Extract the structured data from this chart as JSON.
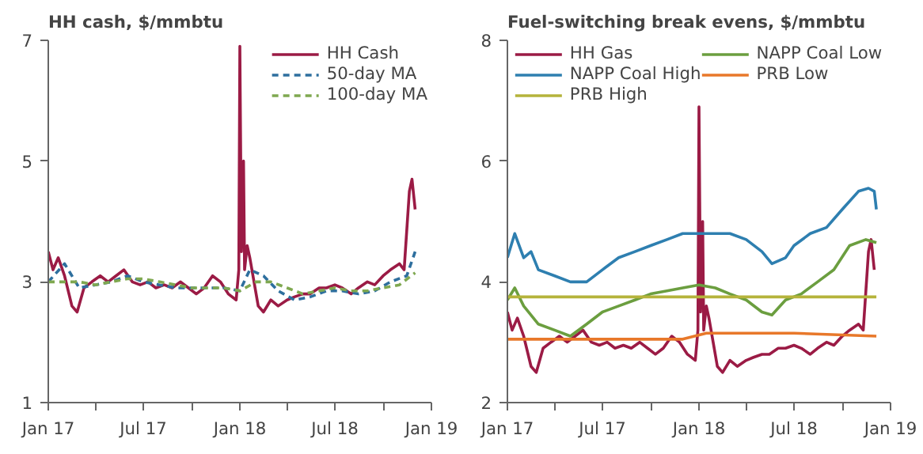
{
  "chart_data": [
    {
      "type": "line",
      "title": "HH cash, $/mmbtu",
      "xlim": [
        "2017-01",
        "2019-01"
      ],
      "ylim": [
        1,
        7
      ],
      "yticks": [
        1,
        3,
        5,
        7
      ],
      "xticks": [
        {
          "value": "2017-01",
          "label": "Jan 17"
        },
        {
          "value": "2017-04",
          "label": null
        },
        {
          "value": "2017-07",
          "label": "Jul 17"
        },
        {
          "value": "2017-10",
          "label": null
        },
        {
          "value": "2018-01",
          "label": "Jan 18"
        },
        {
          "value": "2018-04",
          "label": null
        },
        {
          "value": "2018-07",
          "label": "Jul 18"
        },
        {
          "value": "2018-10",
          "label": null
        },
        {
          "value": "2019-01",
          "label": "Jan 19"
        }
      ],
      "grid": false,
      "legend": "top right",
      "series": [
        {
          "name": "HH Cash",
          "color": "#9b1b45",
          "line_style": "solid",
          "x": [
            "2017-01-01",
            "2017-01-10",
            "2017-01-20",
            "2017-02-01",
            "2017-02-15",
            "2017-02-25",
            "2017-03-10",
            "2017-03-25",
            "2017-04-10",
            "2017-04-25",
            "2017-05-10",
            "2017-05-25",
            "2017-06-10",
            "2017-06-25",
            "2017-07-10",
            "2017-07-25",
            "2017-08-10",
            "2017-08-25",
            "2017-09-10",
            "2017-09-25",
            "2017-10-10",
            "2017-10-25",
            "2017-11-10",
            "2017-11-25",
            "2017-12-10",
            "2017-12-25",
            "2017-12-30",
            "2018-01-01",
            "2018-01-04",
            "2018-01-08",
            "2018-01-10",
            "2018-01-15",
            "2018-01-20",
            "2018-01-28",
            "2018-02-05",
            "2018-02-15",
            "2018-03-01",
            "2018-03-15",
            "2018-04-01",
            "2018-04-15",
            "2018-05-01",
            "2018-05-15",
            "2018-06-01",
            "2018-06-15",
            "2018-07-01",
            "2018-07-15",
            "2018-08-01",
            "2018-08-15",
            "2018-09-01",
            "2018-09-15",
            "2018-10-01",
            "2018-10-15",
            "2018-11-01",
            "2018-11-10",
            "2018-11-20",
            "2018-11-25",
            "2018-12-01"
          ],
          "values": [
            3.5,
            3.2,
            3.4,
            3.1,
            2.6,
            2.5,
            2.9,
            3.0,
            3.1,
            3.0,
            3.1,
            3.2,
            3.0,
            2.95,
            3.0,
            2.9,
            2.95,
            2.9,
            3.0,
            2.9,
            2.8,
            2.9,
            3.1,
            3.0,
            2.8,
            2.7,
            3.2,
            6.9,
            3.5,
            5.0,
            3.2,
            3.6,
            3.4,
            3.0,
            2.6,
            2.5,
            2.7,
            2.6,
            2.7,
            2.75,
            2.8,
            2.8,
            2.9,
            2.9,
            2.95,
            2.9,
            2.8,
            2.9,
            3.0,
            2.95,
            3.1,
            3.2,
            3.3,
            3.2,
            4.5,
            4.7,
            4.2
          ]
        },
        {
          "name": "50-day MA",
          "color": "#2e6f9e",
          "line_style": "dashed",
          "x": [
            "2017-01-01",
            "2017-02-01",
            "2017-03-01",
            "2017-04-01",
            "2017-05-01",
            "2017-06-01",
            "2017-07-01",
            "2017-08-01",
            "2017-09-01",
            "2017-10-01",
            "2017-11-01",
            "2017-12-01",
            "2018-01-01",
            "2018-01-20",
            "2018-02-15",
            "2018-03-15",
            "2018-04-15",
            "2018-05-15",
            "2018-06-15",
            "2018-07-15",
            "2018-08-15",
            "2018-09-15",
            "2018-10-15",
            "2018-11-15",
            "2018-12-01"
          ],
          "values": [
            3.0,
            3.3,
            2.9,
            2.95,
            3.0,
            3.1,
            3.0,
            2.95,
            2.9,
            2.9,
            2.9,
            2.9,
            2.85,
            3.2,
            3.1,
            2.85,
            2.7,
            2.75,
            2.85,
            2.85,
            2.8,
            2.85,
            3.0,
            3.1,
            3.5
          ]
        },
        {
          "name": "100-day MA",
          "color": "#7fa850",
          "line_style": "dashed",
          "x": [
            "2017-01-01",
            "2017-02-01",
            "2017-03-01",
            "2017-04-01",
            "2017-05-01",
            "2017-06-01",
            "2017-07-01",
            "2017-08-01",
            "2017-09-01",
            "2017-10-01",
            "2017-11-01",
            "2017-12-01",
            "2018-01-01",
            "2018-02-01",
            "2018-03-01",
            "2018-04-01",
            "2018-05-01",
            "2018-06-01",
            "2018-07-01",
            "2018-08-01",
            "2018-09-01",
            "2018-10-01",
            "2018-11-01",
            "2018-12-01"
          ],
          "values": [
            3.0,
            3.0,
            3.0,
            2.95,
            3.0,
            3.05,
            3.05,
            3.0,
            2.95,
            2.9,
            2.9,
            2.9,
            2.85,
            3.0,
            3.0,
            2.9,
            2.8,
            2.85,
            2.9,
            2.85,
            2.85,
            2.9,
            2.95,
            3.15
          ]
        }
      ]
    },
    {
      "type": "line",
      "title": "Fuel-switching break evens, $/mmbtu",
      "xlim": [
        "2017-01",
        "2019-01"
      ],
      "ylim": [
        2,
        8
      ],
      "yticks": [
        2,
        4,
        6,
        8
      ],
      "xticks": [
        {
          "value": "2017-01",
          "label": "Jan 17"
        },
        {
          "value": "2017-04",
          "label": null
        },
        {
          "value": "2017-07",
          "label": "Jul 17"
        },
        {
          "value": "2017-10",
          "label": null
        },
        {
          "value": "2018-01",
          "label": "Jan 18"
        },
        {
          "value": "2018-04",
          "label": null
        },
        {
          "value": "2018-07",
          "label": "Jul 18"
        },
        {
          "value": "2018-10",
          "label": null
        },
        {
          "value": "2019-01",
          "label": "Jan 19"
        }
      ],
      "grid": false,
      "legend": "top",
      "series": [
        {
          "name": "HH Gas",
          "color": "#9b1b45",
          "line_style": "solid",
          "x": [
            "2017-01-01",
            "2017-01-10",
            "2017-01-20",
            "2017-02-01",
            "2017-02-15",
            "2017-02-25",
            "2017-03-10",
            "2017-03-25",
            "2017-04-10",
            "2017-04-25",
            "2017-05-10",
            "2017-05-25",
            "2017-06-10",
            "2017-06-25",
            "2017-07-10",
            "2017-07-25",
            "2017-08-10",
            "2017-08-25",
            "2017-09-10",
            "2017-09-25",
            "2017-10-10",
            "2017-10-25",
            "2017-11-10",
            "2017-11-25",
            "2017-12-10",
            "2017-12-25",
            "2017-12-30",
            "2018-01-01",
            "2018-01-04",
            "2018-01-08",
            "2018-01-10",
            "2018-01-15",
            "2018-01-20",
            "2018-01-28",
            "2018-02-05",
            "2018-02-15",
            "2018-03-01",
            "2018-03-15",
            "2018-04-01",
            "2018-04-15",
            "2018-05-01",
            "2018-05-15",
            "2018-06-01",
            "2018-06-15",
            "2018-07-01",
            "2018-07-15",
            "2018-08-01",
            "2018-08-15",
            "2018-09-01",
            "2018-09-15",
            "2018-10-01",
            "2018-10-15",
            "2018-11-01",
            "2018-11-10",
            "2018-11-20",
            "2018-11-25",
            "2018-12-01"
          ],
          "values": [
            3.5,
            3.2,
            3.4,
            3.1,
            2.6,
            2.5,
            2.9,
            3.0,
            3.1,
            3.0,
            3.1,
            3.2,
            3.0,
            2.95,
            3.0,
            2.9,
            2.95,
            2.9,
            3.0,
            2.9,
            2.8,
            2.9,
            3.1,
            3.0,
            2.8,
            2.7,
            3.2,
            6.9,
            3.5,
            5.0,
            3.2,
            3.6,
            3.4,
            3.0,
            2.6,
            2.5,
            2.7,
            2.6,
            2.7,
            2.75,
            2.8,
            2.8,
            2.9,
            2.9,
            2.95,
            2.9,
            2.8,
            2.9,
            3.0,
            2.95,
            3.1,
            3.2,
            3.3,
            3.2,
            4.5,
            4.7,
            4.2
          ]
        },
        {
          "name": "NAPP Coal Low",
          "color": "#6b9e3f",
          "line_style": "solid",
          "x": [
            "2017-01-01",
            "2017-01-15",
            "2017-02-01",
            "2017-03-01",
            "2017-04-01",
            "2017-05-01",
            "2017-06-01",
            "2017-07-01",
            "2017-08-01",
            "2017-09-01",
            "2017-10-01",
            "2017-11-01",
            "2017-12-01",
            "2018-01-01",
            "2018-02-01",
            "2018-03-01",
            "2018-04-01",
            "2018-05-01",
            "2018-05-20",
            "2018-06-15",
            "2018-07-15",
            "2018-08-15",
            "2018-09-15",
            "2018-10-15",
            "2018-11-15",
            "2018-12-05"
          ],
          "values": [
            3.7,
            3.9,
            3.6,
            3.3,
            3.2,
            3.1,
            3.3,
            3.5,
            3.6,
            3.7,
            3.8,
            3.85,
            3.9,
            3.95,
            3.9,
            3.8,
            3.7,
            3.5,
            3.45,
            3.7,
            3.8,
            4.0,
            4.2,
            4.6,
            4.7,
            4.65
          ]
        },
        {
          "name": "NAPP Coal High",
          "color": "#2e7fb0",
          "line_style": "solid",
          "x": [
            "2017-01-01",
            "2017-01-15",
            "2017-02-01",
            "2017-02-15",
            "2017-03-01",
            "2017-04-01",
            "2017-05-01",
            "2017-06-01",
            "2017-07-01",
            "2017-08-01",
            "2017-09-01",
            "2017-10-01",
            "2017-11-01",
            "2017-12-01",
            "2018-01-01",
            "2018-02-01",
            "2018-03-01",
            "2018-04-01",
            "2018-05-01",
            "2018-05-20",
            "2018-06-15",
            "2018-07-01",
            "2018-08-01",
            "2018-09-01",
            "2018-10-01",
            "2018-11-01",
            "2018-11-20",
            "2018-12-01",
            "2018-12-05"
          ],
          "values": [
            4.4,
            4.8,
            4.4,
            4.5,
            4.2,
            4.1,
            4.0,
            4.0,
            4.2,
            4.4,
            4.5,
            4.6,
            4.7,
            4.8,
            4.8,
            4.8,
            4.8,
            4.7,
            4.5,
            4.3,
            4.4,
            4.6,
            4.8,
            4.9,
            5.2,
            5.5,
            5.55,
            5.5,
            5.2
          ]
        },
        {
          "name": "PRB Low",
          "color": "#e8782a",
          "line_style": "solid",
          "x": [
            "2017-01-01",
            "2017-06-01",
            "2017-12-01",
            "2018-01-15",
            "2018-07-01",
            "2018-12-05"
          ],
          "values": [
            3.05,
            3.05,
            3.05,
            3.15,
            3.15,
            3.1
          ]
        },
        {
          "name": "PRB High",
          "color": "#b5b33b",
          "line_style": "solid",
          "x": [
            "2017-01-01",
            "2018-06-01",
            "2018-12-05"
          ],
          "values": [
            3.75,
            3.75,
            3.75
          ]
        }
      ]
    }
  ]
}
